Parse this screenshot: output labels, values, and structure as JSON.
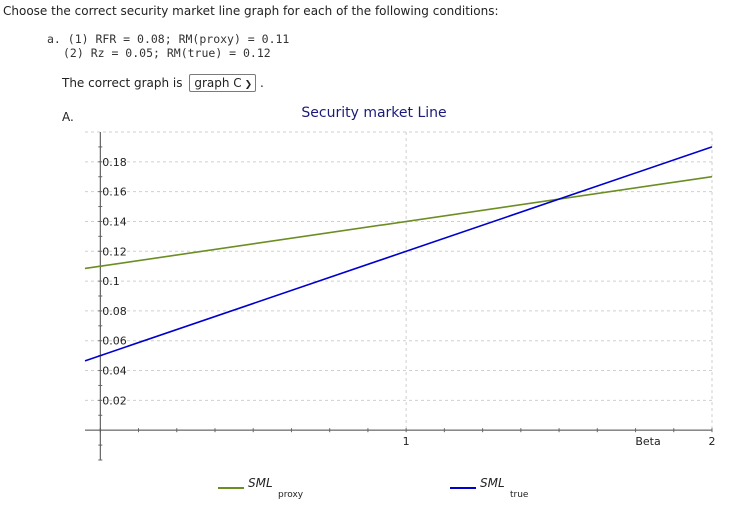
{
  "question": "Choose the correct security market line graph for each of the following conditions:",
  "conditions": {
    "item_label": "a.",
    "line1": "(1) RFR = 0.08; RM(proxy) = 0.11",
    "line2": "(2) Rz = 0.05; RM(true) = 0.12"
  },
  "answer": {
    "prefix": "The correct graph is",
    "selected": "graph C",
    "suffix": "."
  },
  "option_label": "A.",
  "chart_data": {
    "type": "line",
    "title": "Security market Line",
    "xlabel": "Beta",
    "ylabel": "",
    "xlim": [
      -0.05,
      2.0
    ],
    "ylim": [
      -0.02,
      0.2
    ],
    "x_ticks": [
      1,
      2
    ],
    "x_tick_labels": [
      "1",
      "2"
    ],
    "y_ticks": [
      0.02,
      0.04,
      0.06,
      0.08,
      0.1,
      0.12,
      0.14,
      0.16,
      0.18
    ],
    "y_tick_labels": [
      "0.02",
      "0.04",
      "0.06",
      "0.08",
      "0.1",
      "0.12",
      "0.14",
      "0.16",
      "0.18"
    ],
    "grid": true,
    "legend_position": "bottom",
    "series": [
      {
        "name": "SML",
        "subscript": "proxy",
        "color": "#6b8e23",
        "x": [
          -0.05,
          2.0
        ],
        "y": [
          0.1085,
          0.17
        ]
      },
      {
        "name": "SML",
        "subscript": "true",
        "color": "#0000cd",
        "x": [
          -0.05,
          2.0
        ],
        "y": [
          0.0465,
          0.19
        ]
      }
    ]
  }
}
